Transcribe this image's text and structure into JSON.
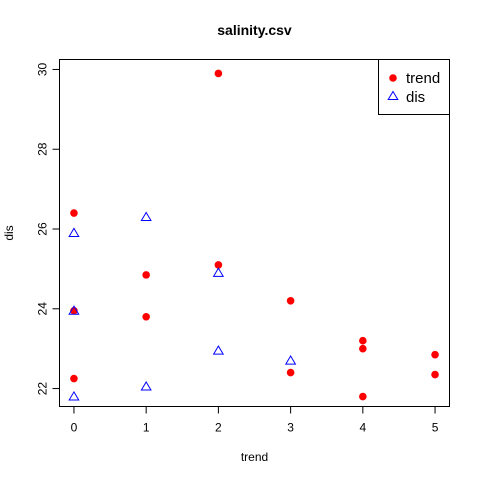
{
  "chart_data": {
    "type": "scatter",
    "title": "salinity.csv",
    "xlabel": "trend",
    "ylabel": "dis",
    "xlim": [
      -0.2,
      5.2
    ],
    "ylim": [
      21.55,
      30.25
    ],
    "x_ticks": [
      0,
      1,
      2,
      3,
      4,
      5
    ],
    "y_ticks": [
      22,
      24,
      26,
      28,
      30
    ],
    "grid": false,
    "legend_position": "top-right",
    "series": [
      {
        "name": "trend",
        "marker": "filled-circle",
        "color": "#ff0000",
        "points": [
          {
            "x": 0,
            "y": 26.4
          },
          {
            "x": 0,
            "y": 23.95
          },
          {
            "x": 0,
            "y": 22.25
          },
          {
            "x": 1,
            "y": 24.85
          },
          {
            "x": 1,
            "y": 23.8
          },
          {
            "x": 2,
            "y": 29.9
          },
          {
            "x": 2,
            "y": 25.1
          },
          {
            "x": 3,
            "y": 24.2
          },
          {
            "x": 3,
            "y": 22.4
          },
          {
            "x": 4,
            "y": 23.2
          },
          {
            "x": 4,
            "y": 23.0
          },
          {
            "x": 4,
            "y": 21.8
          },
          {
            "x": 5,
            "y": 22.85
          },
          {
            "x": 5,
            "y": 22.35
          }
        ]
      },
      {
        "name": "dis",
        "marker": "open-triangle",
        "color": "#0000ff",
        "points": [
          {
            "x": 0,
            "y": 25.9
          },
          {
            "x": 0,
            "y": 23.95
          },
          {
            "x": 0,
            "y": 21.8
          },
          {
            "x": 1,
            "y": 26.3
          },
          {
            "x": 1,
            "y": 22.05
          },
          {
            "x": 2,
            "y": 24.9
          },
          {
            "x": 2,
            "y": 22.95
          },
          {
            "x": 3,
            "y": 22.7
          }
        ]
      }
    ]
  }
}
